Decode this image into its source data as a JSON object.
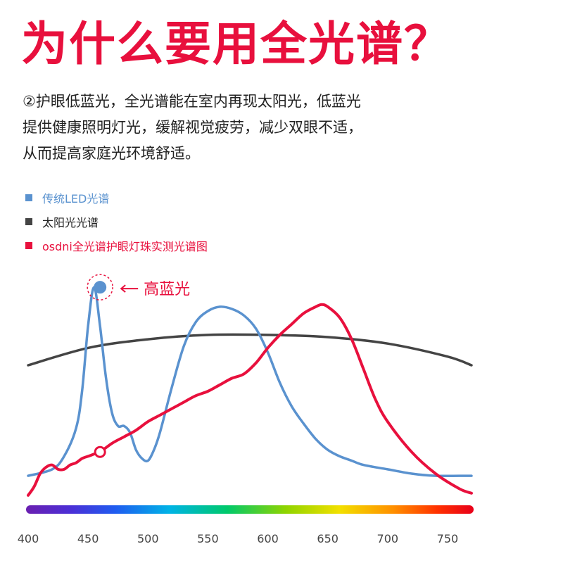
{
  "page": {
    "title": "为什么要用全光谱？",
    "description": [
      "②护眼低蓝光，全光谱能在室内再现太阳光，低蓝光",
      "提供健康照明灯光，缓解视觉疲劳，减少双眼不适，",
      "从而提高家庭光环境舒适。"
    ]
  },
  "colors": {
    "title": "#e8103d",
    "led": "#5a92cf",
    "sun": "#444444",
    "osdni": "#e8103d"
  },
  "chart_data": {
    "type": "line",
    "title": "",
    "xlabel": "",
    "ylabel": "",
    "xlim": [
      400,
      770
    ],
    "ylim": [
      0,
      1
    ],
    "xticks": [
      400,
      450,
      500,
      550,
      600,
      650,
      700,
      750
    ],
    "legend_position": "top-left",
    "legend": [
      {
        "name": "传统LED光谱",
        "color": "#5a92cf"
      },
      {
        "name": "太阳光光谱",
        "color": "#444444"
      },
      {
        "name": "osdni全光谱护眼灯珠实测光谱图",
        "color": "#e8103d"
      }
    ],
    "series": [
      {
        "name": "传统LED光谱",
        "color": "#5a92cf",
        "x": [
          400,
          420,
          430,
          440,
          445,
          450,
          455,
          460,
          465,
          470,
          475,
          480,
          485,
          490,
          495,
          500,
          505,
          510,
          520,
          530,
          540,
          550,
          560,
          570,
          580,
          590,
          600,
          610,
          620,
          630,
          640,
          650,
          660,
          670,
          680,
          700,
          720,
          740,
          760,
          770
        ],
        "y": [
          0.11,
          0.14,
          0.2,
          0.33,
          0.5,
          0.8,
          0.98,
          0.8,
          0.56,
          0.4,
          0.34,
          0.34,
          0.31,
          0.23,
          0.19,
          0.18,
          0.23,
          0.31,
          0.52,
          0.71,
          0.82,
          0.87,
          0.89,
          0.88,
          0.85,
          0.79,
          0.68,
          0.54,
          0.43,
          0.35,
          0.28,
          0.23,
          0.2,
          0.18,
          0.16,
          0.14,
          0.12,
          0.11,
          0.11,
          0.11
        ]
      },
      {
        "name": "太阳光光谱",
        "color": "#444444",
        "x": [
          400,
          450,
          500,
          550,
          600,
          650,
          700,
          750,
          770
        ],
        "y": [
          0.62,
          0.7,
          0.74,
          0.76,
          0.76,
          0.75,
          0.72,
          0.66,
          0.62
        ]
      },
      {
        "name": "osdni全光谱护眼灯珠实测光谱图",
        "color": "#e8103d",
        "x": [
          400,
          405,
          410,
          415,
          420,
          425,
          430,
          435,
          440,
          445,
          450,
          455,
          460,
          470,
          480,
          490,
          500,
          510,
          520,
          530,
          540,
          550,
          560,
          570,
          580,
          590,
          600,
          610,
          620,
          630,
          640,
          645,
          650,
          660,
          670,
          680,
          690,
          700,
          720,
          740,
          760,
          770
        ],
        "y": [
          0.02,
          0.06,
          0.12,
          0.15,
          0.16,
          0.14,
          0.14,
          0.16,
          0.17,
          0.19,
          0.2,
          0.21,
          0.22,
          0.26,
          0.29,
          0.32,
          0.36,
          0.39,
          0.42,
          0.45,
          0.48,
          0.5,
          0.53,
          0.56,
          0.58,
          0.63,
          0.7,
          0.76,
          0.81,
          0.86,
          0.89,
          0.9,
          0.89,
          0.84,
          0.74,
          0.6,
          0.46,
          0.36,
          0.22,
          0.12,
          0.05,
          0.03
        ]
      }
    ],
    "annotations": [
      {
        "text": "高蓝光",
        "x": 460,
        "y": 0.98,
        "series": "传统LED光谱",
        "color": "#e8103d"
      },
      {
        "x": 460,
        "y": 0.22,
        "series": "osdni全光谱护眼灯珠实测光谱图",
        "color": "#e8103d"
      }
    ]
  }
}
